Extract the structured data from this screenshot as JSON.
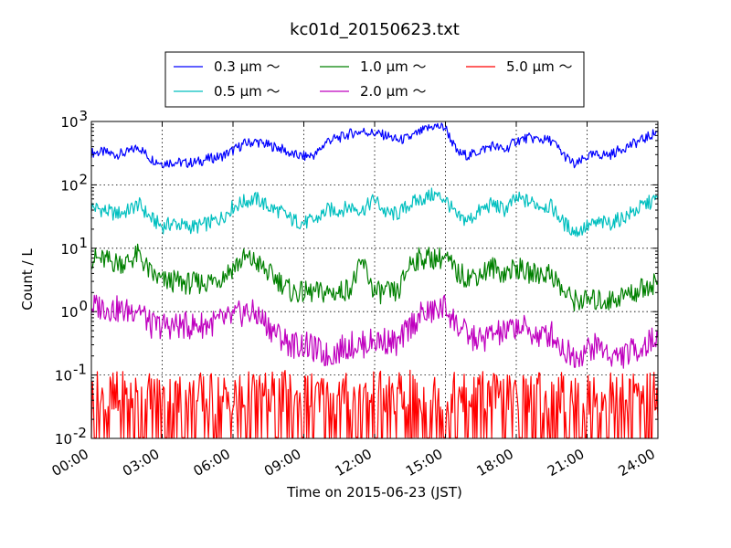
{
  "chart_data": {
    "type": "line",
    "title": "kc01d_20150623.txt",
    "xlabel": "Time on 2015-06-23 (JST)",
    "ylabel": "Count / L",
    "yscale": "log",
    "ylim": [
      0.01,
      1000
    ],
    "xlim": [
      "2015-06-23 00:00",
      "2015-06-24 00:00"
    ],
    "x_tick_labels": [
      "00:00",
      "03:00",
      "06:00",
      "09:00",
      "12:00",
      "15:00",
      "18:00",
      "21:00",
      "24:00"
    ],
    "y_tick_labels": [
      {
        "base": "10",
        "exp": "-2"
      },
      {
        "base": "10",
        "exp": "-1"
      },
      {
        "base": "10",
        "exp": "0"
      },
      {
        "base": "10",
        "exp": "1"
      },
      {
        "base": "10",
        "exp": "2"
      },
      {
        "base": "10",
        "exp": "3"
      }
    ],
    "grid": true,
    "legend_position": "top-center",
    "x_hours": [
      0,
      0.5,
      1,
      1.5,
      2,
      2.5,
      3,
      3.5,
      4,
      4.5,
      5,
      5.5,
      6,
      6.5,
      7,
      7.5,
      8,
      8.5,
      9,
      9.5,
      10,
      10.5,
      11,
      11.5,
      12,
      12.5,
      13,
      13.5,
      14,
      14.5,
      15,
      15.5,
      16,
      16.5,
      17,
      17.5,
      18,
      18.5,
      19,
      19.5,
      20,
      20.5,
      21,
      21.5,
      22,
      22.5,
      23,
      23.5,
      24
    ],
    "series": [
      {
        "name": "0.3 μm ～",
        "color": "#0000ff",
        "values": [
          320,
          330,
          300,
          320,
          400,
          260,
          220,
          230,
          220,
          230,
          260,
          280,
          350,
          450,
          480,
          420,
          380,
          300,
          280,
          300,
          500,
          550,
          650,
          700,
          650,
          600,
          500,
          560,
          700,
          850,
          800,
          320,
          290,
          350,
          420,
          350,
          500,
          550,
          520,
          500,
          300,
          200,
          280,
          300,
          300,
          380,
          450,
          550,
          700
        ]
      },
      {
        "name": "0.5 μm ～",
        "color": "#00bfbf",
        "values": [
          45,
          40,
          35,
          38,
          50,
          30,
          22,
          25,
          22,
          22,
          25,
          30,
          45,
          55,
          60,
          45,
          38,
          28,
          25,
          28,
          40,
          40,
          45,
          40,
          60,
          35,
          35,
          50,
          60,
          70,
          60,
          30,
          28,
          40,
          50,
          40,
          60,
          55,
          48,
          45,
          25,
          18,
          22,
          25,
          25,
          30,
          38,
          50,
          60
        ]
      },
      {
        "name": "1.0 μm ～",
        "color": "#008000",
        "values": [
          7,
          6.5,
          6,
          6,
          8,
          4,
          3,
          3,
          2.8,
          2.8,
          3,
          3.5,
          5,
          7,
          6,
          4,
          3,
          2,
          2,
          2,
          2,
          2,
          2.5,
          6,
          2,
          2,
          2,
          6,
          7,
          7,
          7,
          4,
          3.5,
          4,
          5,
          4,
          5,
          4,
          4,
          4,
          2,
          1.5,
          1.5,
          1.5,
          1.5,
          1.8,
          2,
          2.5,
          3
        ]
      },
      {
        "name": "2.0 μm ～",
        "color": "#bf00bf",
        "values": [
          1.2,
          1.2,
          1.1,
          1.0,
          1.2,
          0.6,
          0.6,
          0.6,
          0.6,
          0.6,
          0.65,
          0.7,
          0.8,
          1.0,
          0.9,
          0.6,
          0.4,
          0.3,
          0.3,
          0.25,
          0.2,
          0.25,
          0.3,
          0.3,
          0.35,
          0.35,
          0.3,
          0.6,
          0.9,
          1.0,
          1.2,
          0.6,
          0.4,
          0.35,
          0.45,
          0.45,
          0.6,
          0.5,
          0.4,
          0.45,
          0.25,
          0.2,
          0.25,
          0.3,
          0.2,
          0.2,
          0.25,
          0.3,
          0.4
        ]
      },
      {
        "name": "5.0 μm ～",
        "color": "#ff0000",
        "values": [
          0.04,
          0.06,
          0.03,
          0.05,
          0.03,
          0.04,
          0.02,
          0.03,
          0.04,
          0.02,
          0.03,
          0.02,
          0.03,
          0.02,
          0.03,
          0.02,
          0.03,
          0.02,
          0.02,
          0.02,
          0.02,
          0.03,
          0.02,
          0.03,
          0.02,
          0.02,
          0.03,
          0.02,
          0.04,
          0.03,
          0.04,
          0.03,
          0.02,
          0.03,
          0.04,
          0.03,
          0.02,
          0.03,
          0.02,
          0.03,
          0.02,
          0.02,
          0.02,
          0.02,
          0.02,
          0.02,
          0.02,
          0.02,
          0.02
        ]
      }
    ]
  }
}
